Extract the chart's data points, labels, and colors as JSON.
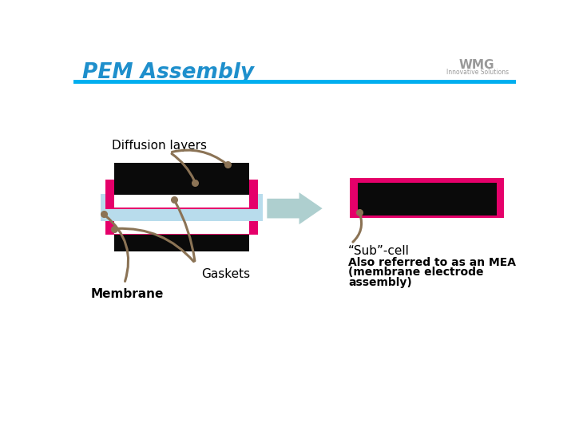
{
  "title": "PEM Assembly",
  "title_color": "#1E8FCC",
  "header_line_color": "#00AEEF",
  "bg_color": "#FFFFFF",
  "label_diffusion": "Diffusion layers",
  "label_gaskets": "Gaskets",
  "label_membrane": "Membrane",
  "label_subcell": "“Sub”-cell",
  "label_mea_line1": "Also referred to as an MEA",
  "label_mea_line2": "(membrane electrode",
  "label_mea_line3": "assembly)",
  "arrow_color": "#AECFCF",
  "connector_color": "#8B7355",
  "black_layer": "#0A0A0A",
  "pink_layer": "#E5006A",
  "blue_layer": "#B8DCEC",
  "wmg_color": "#999999"
}
